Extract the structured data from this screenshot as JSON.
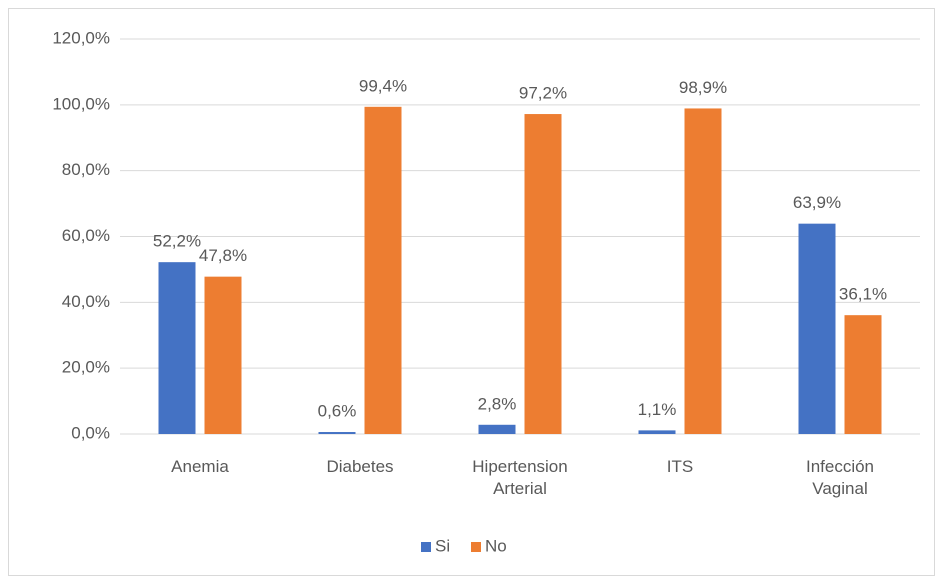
{
  "chart_data": {
    "type": "bar",
    "categories": [
      "Anemia",
      "Diabetes",
      "Hipertension Arterial",
      "ITS",
      "Infección Vaginal"
    ],
    "series": [
      {
        "name": "Si",
        "color": "#4472c4",
        "values": [
          52.2,
          0.6,
          2.8,
          1.1,
          63.9
        ],
        "value_labels": [
          "52,2%",
          "0,6%",
          "2,8%",
          "1,1%",
          "63,9%"
        ]
      },
      {
        "name": "No",
        "color": "#ed7d31",
        "values": [
          47.8,
          99.4,
          97.2,
          98.9,
          36.1
        ],
        "value_labels": [
          "47,8%",
          "99,4%",
          "97,2%",
          "98,9%",
          "36,1%"
        ]
      }
    ],
    "ylim": [
      0,
      120
    ],
    "yticks": [
      {
        "value": 0,
        "label": "0,0%"
      },
      {
        "value": 20,
        "label": "20,0%"
      },
      {
        "value": 40,
        "label": "40,0%"
      },
      {
        "value": 60,
        "label": "60,0%"
      },
      {
        "value": 80,
        "label": "80,0%"
      },
      {
        "value": 100,
        "label": "100,0%"
      },
      {
        "value": 120,
        "label": "120,0%"
      }
    ],
    "grid": true,
    "legend": "bottom"
  }
}
